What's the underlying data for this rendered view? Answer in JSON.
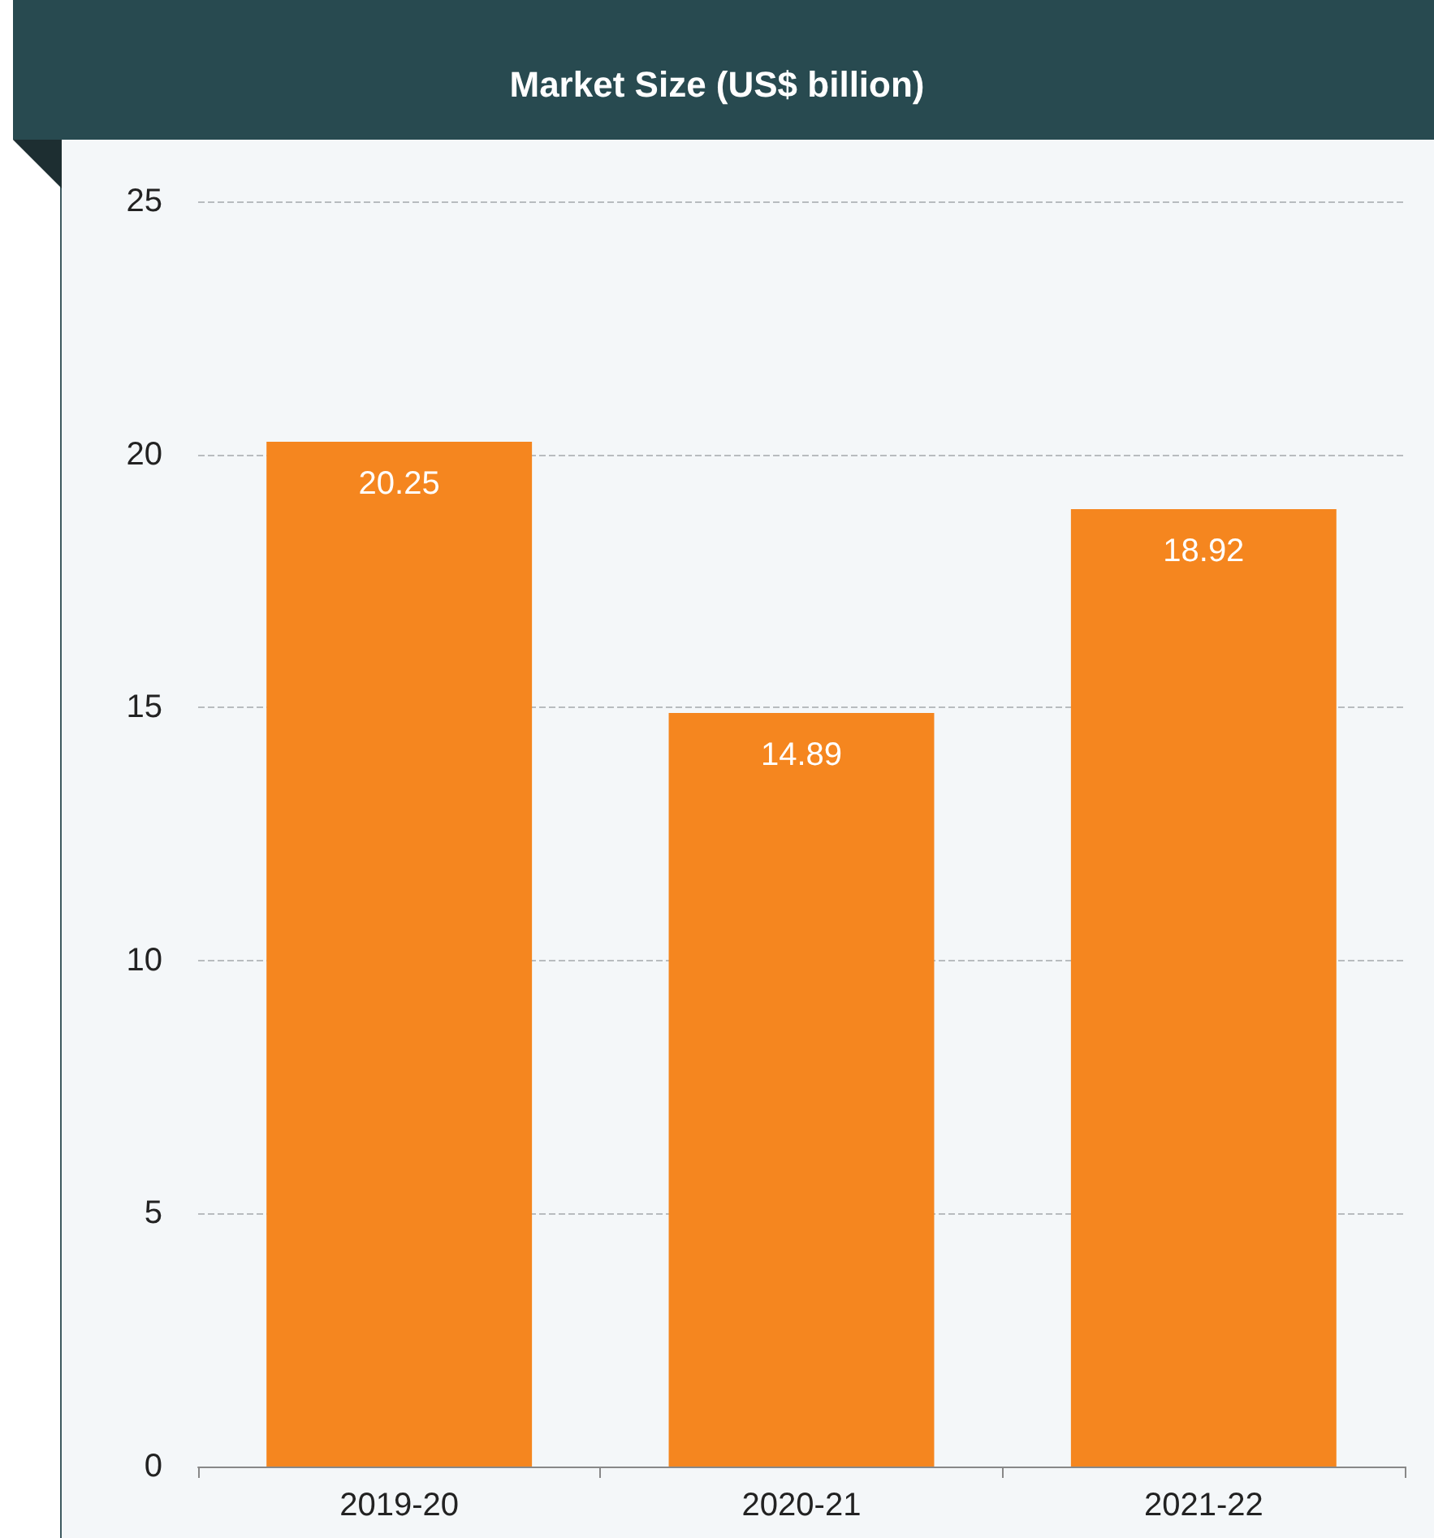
{
  "chart_data": {
    "type": "bar",
    "title": "Market Size (US$ billion)",
    "categories": [
      "2019-20",
      "2020-21",
      "2021-22"
    ],
    "values": [
      20.25,
      14.89,
      18.92
    ],
    "color": "#f5861f",
    "ylim": [
      0,
      25
    ],
    "yticks": [
      0,
      5,
      10,
      15,
      20,
      25
    ],
    "grid": "y",
    "data_labels": true
  }
}
